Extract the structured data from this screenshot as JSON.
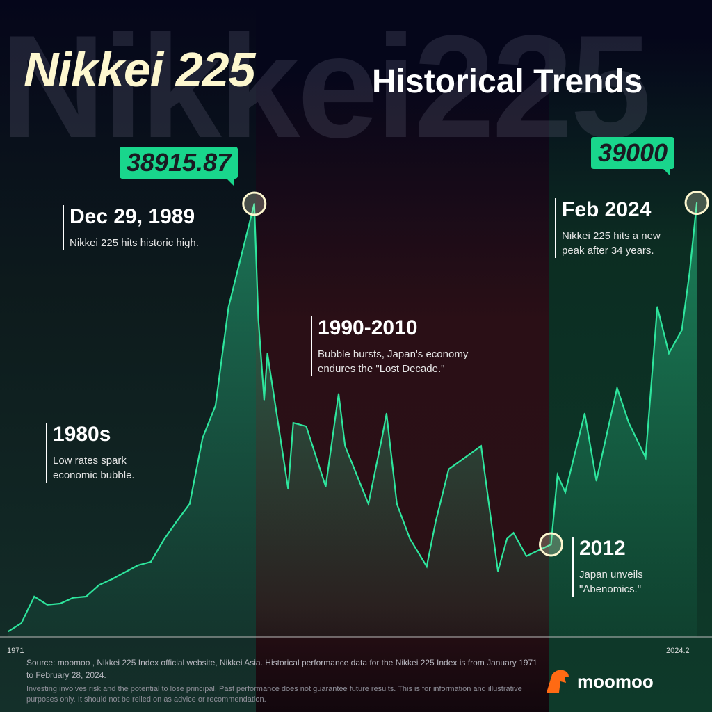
{
  "header": {
    "watermark": "Nikkei225",
    "title": "Nikkei 225",
    "subtitle": "Historical Trends"
  },
  "colors": {
    "line": "#2ee59d",
    "accent": "#19d68c",
    "title": "#fdf7cf",
    "brand": "#ff6a13"
  },
  "chart_data": {
    "type": "line",
    "title": "Nikkei 225 Historical Trends",
    "xlim": [
      1971,
      2024.2
    ],
    "ylim": [
      1600,
      40000
    ],
    "x_tick_labels": [
      "1971",
      "2024.2"
    ],
    "x": [
      1971,
      1972,
      1973,
      1974,
      1975,
      1976,
      1977,
      1978,
      1979,
      1980,
      1981,
      1982,
      1983,
      1984,
      1985,
      1986,
      1987,
      1988,
      1989.99,
      1990.3,
      1990.75,
      1991,
      1992.6,
      1993,
      1994,
      1995.5,
      1996.5,
      1997,
      1998.8,
      1999.9,
      2000.2,
      2001,
      2002,
      2003.3,
      2004,
      2005,
      2007.5,
      2008.8,
      2009.5,
      2010,
      2011,
      2012.9,
      2013.4,
      2014,
      2015.5,
      2016.4,
      2018,
      2018.9,
      2020.2,
      2021.1,
      2022,
      2023,
      2023.6,
      2024.15
    ],
    "values": [
      2000,
      2700,
      5000,
      4300,
      4400,
      4900,
      5000,
      6000,
      6500,
      7100,
      7700,
      8000,
      9900,
      11500,
      13000,
      18700,
      21500,
      30000,
      38916,
      29000,
      22000,
      26000,
      14300,
      20000,
      19700,
      14500,
      22500,
      18000,
      13000,
      19000,
      20800,
      13000,
      10000,
      7600,
      11500,
      16000,
      18000,
      7200,
      10000,
      10500,
      8500,
      9500,
      15500,
      14000,
      20800,
      15000,
      23000,
      20000,
      17000,
      30000,
      26000,
      28000,
      33000,
      39000
    ],
    "highlights": [
      {
        "label": "38915.87",
        "x": 1989.99,
        "value": 38916
      },
      {
        "label": "39000",
        "x": 2024.15,
        "value": 39000
      },
      {
        "x": 2012.9,
        "value": 9500
      }
    ],
    "annotations": [
      {
        "title": "Dec 29, 1989",
        "text": "Nikkei 225 hits historic high."
      },
      {
        "title": "1980s",
        "text": "Low rates spark\neconomic bubble."
      },
      {
        "title": "1990-2010",
        "text": "Bubble bursts, Japan's economy\n endures the \"Lost Decade.\""
      },
      {
        "title": "2012",
        "text": "Japan unveils\n \"Abenomics.\""
      },
      {
        "title": "Feb 2024",
        "text": "Nikkei 225 hits a new\npeak after 34 years."
      }
    ]
  },
  "footer": {
    "source": "Source: moomoo , Nikkei 225 Index official website, Nikkei Asia. Historical performance data for the Nikkei 225 Index is from January 1971 to February 28, 2024.",
    "disclaimer": "Investing involves risk and the potential to lose principal. Past performance does not guarantee future results. This is for information and illustrative purposes only. It should not be relied on as advice or recommendation.",
    "brand": "moomoo"
  }
}
